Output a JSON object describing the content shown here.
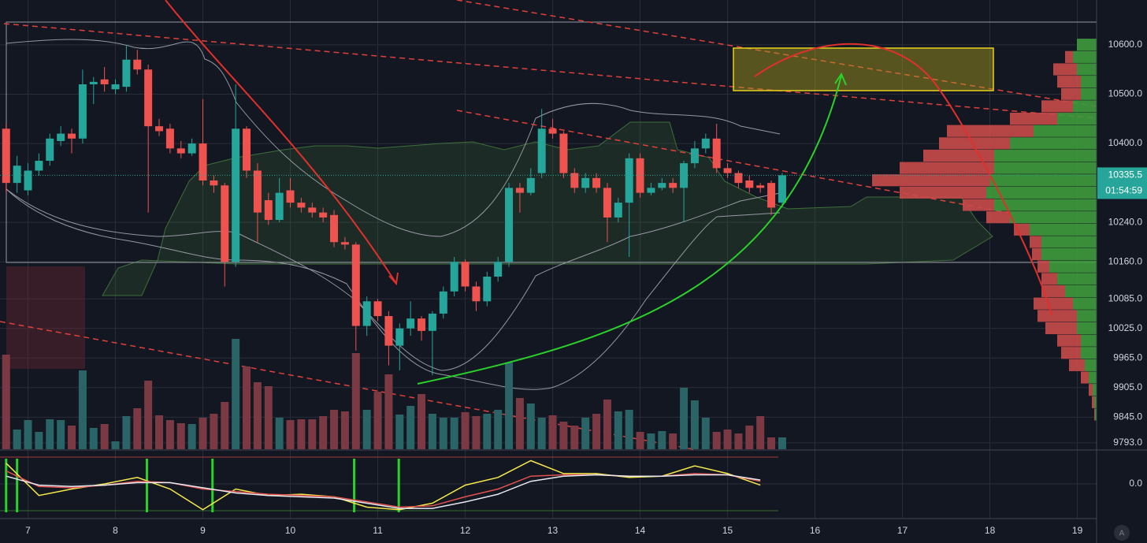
{
  "chart_data": {
    "type": "candlestick",
    "x": [
      6.75,
      6.875,
      7,
      7.125,
      7.25,
      7.375,
      7.5,
      7.625,
      7.75,
      7.875,
      8,
      8.125,
      8.25,
      8.375,
      8.5,
      8.625,
      8.75,
      8.875,
      9,
      9.125,
      9.25,
      9.375,
      9.5,
      9.625,
      9.75,
      9.875,
      10,
      10.125,
      10.25,
      10.375,
      10.5,
      10.625,
      10.75,
      10.875,
      11,
      11.125,
      11.25,
      11.375,
      11.5,
      11.625,
      11.75,
      11.875,
      12,
      12.125,
      12.25,
      12.375,
      12.5,
      12.625,
      12.75,
      12.875,
      13,
      13.125,
      13.25,
      13.375,
      13.5,
      13.625,
      13.75,
      13.875,
      14,
      14.125,
      14.25,
      14.375,
      14.5,
      14.625,
      14.75,
      14.875,
      15,
      15.125,
      15.25,
      15.375,
      15.5,
      15.625
    ],
    "open": [
      10430,
      10320,
      10305,
      10345,
      10365,
      10405,
      10420,
      10410,
      10520,
      10530,
      10510,
      10515,
      10570,
      10550,
      10435,
      10430,
      10390,
      10380,
      10400,
      10325,
      10315,
      10160,
      10430,
      10345,
      10285,
      10245,
      10305,
      10280,
      10270,
      10260,
      10255,
      10200,
      10195,
      10030,
      10080,
      10050,
      9990,
      10025,
      10045,
      10020,
      10055,
      10100,
      10160,
      10110,
      10080,
      10130,
      10160,
      10310,
      10300,
      10340,
      10430,
      10420,
      10340,
      10310,
      10330,
      10310,
      10250,
      10280,
      10370,
      10300,
      10310,
      10320,
      10310,
      10360,
      10390,
      10410,
      10350,
      10340,
      10325,
      10315,
      10320,
      10280
    ],
    "high": [
      10440,
      10375,
      10360,
      10380,
      10420,
      10435,
      10430,
      10550,
      10535,
      10555,
      10530,
      10600,
      10590,
      10560,
      10450,
      10440,
      10405,
      10410,
      10490,
      10335,
      10320,
      10520,
      10435,
      10360,
      10300,
      10330,
      10330,
      10290,
      10280,
      10270,
      10265,
      10210,
      10200,
      10090,
      10085,
      10060,
      10035,
      10080,
      10050,
      10060,
      10110,
      10170,
      10165,
      10120,
      10140,
      10170,
      10320,
      10320,
      10350,
      10470,
      10450,
      10425,
      10350,
      10340,
      10340,
      10320,
      10290,
      10380,
      10380,
      10320,
      10330,
      10330,
      10365,
      10405,
      10420,
      10440,
      10360,
      10345,
      10335,
      10320,
      10325,
      10340
    ],
    "low": [
      10300,
      10300,
      10295,
      10335,
      10355,
      10395,
      10380,
      10400,
      10480,
      10505,
      10500,
      10505,
      10540,
      10260,
      10415,
      10380,
      10370,
      10375,
      10315,
      10300,
      10110,
      10150,
      10330,
      10200,
      10235,
      10240,
      10270,
      10260,
      10250,
      10240,
      10190,
      10185,
      9980,
      10010,
      10040,
      9950,
      9940,
      10010,
      10000,
      9930,
      10045,
      10090,
      10100,
      10060,
      10070,
      10120,
      10150,
      10260,
      10295,
      10330,
      10410,
      10330,
      10300,
      10300,
      10300,
      10200,
      10240,
      10170,
      10290,
      10295,
      10305,
      10300,
      10240,
      10350,
      10380,
      10340,
      10330,
      10310,
      10300,
      10300,
      10255,
      10270
    ],
    "close": [
      10320,
      10355,
      10345,
      10365,
      10410,
      10420,
      10410,
      10520,
      10525,
      10520,
      10520,
      10570,
      10550,
      10435,
      10425,
      10390,
      10380,
      10400,
      10325,
      10315,
      10160,
      10430,
      10345,
      10260,
      10245,
      10300,
      10280,
      10270,
      10260,
      10250,
      10200,
      10195,
      10030,
      10080,
      10050,
      9990,
      10025,
      10045,
      10020,
      10055,
      10100,
      10160,
      10110,
      10080,
      10130,
      10160,
      10310,
      10300,
      10330,
      10430,
      10420,
      10340,
      10310,
      10330,
      10310,
      10250,
      10280,
      10370,
      10300,
      10310,
      10320,
      10310,
      10360,
      10390,
      10410,
      10350,
      10340,
      10320,
      10310,
      10310,
      10270,
      10335.5
    ],
    "up_color": "#26a69a",
    "down_color": "#ef5350",
    "xlim": [
      6.68,
      19.22
    ],
    "xticks": [
      7,
      8,
      9,
      10,
      11,
      12,
      13,
      14,
      15,
      16,
      17,
      18,
      19
    ],
    "ylim": [
      9780,
      10691
    ],
    "yticks": [
      {
        "value": 10600,
        "label": "10600.0"
      },
      {
        "value": 10500,
        "label": "10500.0"
      },
      {
        "value": 10400,
        "label": "10400.0"
      },
      {
        "value": 10240,
        "label": "10240.0"
      },
      {
        "value": 10160,
        "label": "10160.0"
      },
      {
        "value": 10085,
        "label": "10085.0"
      },
      {
        "value": 10025,
        "label": "10025.0"
      },
      {
        "value": 9965,
        "label": "9965.0"
      },
      {
        "value": 9905,
        "label": "9905.0"
      },
      {
        "value": 9845,
        "label": "9845.0"
      },
      {
        "value": 9793,
        "label": "9793.0"
      }
    ],
    "last_price": 10335.5,
    "countdown": "01:54:59",
    "volume": {
      "values": [
        120,
        25,
        37,
        22,
        38,
        37,
        30,
        100,
        27,
        32,
        10,
        42,
        52,
        87,
        43,
        37,
        33,
        32,
        40,
        45,
        60,
        140,
        105,
        85,
        80,
        40,
        37,
        38,
        38,
        42,
        50,
        48,
        122,
        50,
        73,
        95,
        44,
        55,
        70,
        45,
        40,
        40,
        47,
        42,
        45,
        50,
        110,
        65,
        58,
        40,
        43,
        35,
        30,
        40,
        45,
        63,
        48,
        50,
        22,
        20,
        23,
        20,
        78,
        62,
        40,
        22,
        25,
        20,
        30,
        42,
        15,
        15
      ],
      "ylim": [
        0,
        570
      ],
      "up_color": "#2a6466",
      "down_color": "#7b3a43"
    },
    "oscillator": {
      "x": [
        6.75,
        7.125,
        7.5,
        7.875,
        8.25,
        8.625,
        9,
        9.375,
        9.75,
        10.125,
        10.5,
        10.875,
        11.25,
        11.625,
        12,
        12.375,
        12.75,
        13.125,
        13.5,
        13.875,
        14.25,
        14.625,
        15,
        15.375
      ],
      "ylim": [
        -1.1,
        1.1
      ],
      "yticks": [
        {
          "value": 0,
          "label": "0.0"
        }
      ],
      "series": [
        {
          "color": "#f5e94c",
          "values": [
            0.8,
            -0.45,
            -0.2,
            0,
            0.25,
            -0.2,
            -1,
            -0.2,
            -0.45,
            -0.4,
            -0.5,
            -0.9,
            -1,
            -0.75,
            -0.05,
            0.25,
            0.9,
            0.4,
            0.4,
            0.25,
            0.3,
            0.7,
            0.4,
            -0.05
          ]
        },
        {
          "color": "#e0514f",
          "values": [
            0.5,
            -0.1,
            -0.15,
            -0.05,
            0.1,
            0.05,
            -0.2,
            -0.3,
            -0.4,
            -0.45,
            -0.5,
            -0.7,
            -0.9,
            -0.85,
            -0.5,
            -0.2,
            0.3,
            0.35,
            0.35,
            0.3,
            0.3,
            0.4,
            0.35,
            0.1
          ]
        },
        {
          "color": "#e8e8f0",
          "values": [
            0.3,
            -0.05,
            -0.1,
            -0.05,
            0.05,
            0.05,
            -0.15,
            -0.35,
            -0.45,
            -0.5,
            -0.55,
            -0.75,
            -0.95,
            -0.95,
            -0.7,
            -0.4,
            0.1,
            0.3,
            0.35,
            0.3,
            0.3,
            0.35,
            0.35,
            0.15
          ]
        }
      ],
      "signals": [
        6.75,
        6.875,
        8.36,
        9.11,
        10.73,
        11.24
      ],
      "signal_color": "#2bd12b"
    },
    "volume_profile": {
      "prices": [
        10600,
        10575,
        10550,
        10525,
        10500,
        10475,
        10450,
        10425,
        10400,
        10375,
        10350,
        10325,
        10300,
        10275,
        10250,
        10225,
        10200,
        10175,
        10150,
        10125,
        10100,
        10075,
        10050,
        10025,
        10000,
        9975,
        9950,
        9925,
        9900,
        9875,
        9850
      ],
      "buy": [
        25,
        30,
        25,
        20,
        20,
        30,
        50,
        80,
        110,
        130,
        130,
        135,
        140,
        130,
        110,
        85,
        70,
        70,
        60,
        50,
        40,
        30,
        25,
        25,
        20,
        20,
        15,
        10,
        5,
        3,
        2
      ],
      "sell": [
        0,
        10,
        30,
        30,
        25,
        40,
        60,
        110,
        90,
        90,
        120,
        150,
        110,
        40,
        30,
        20,
        15,
        12,
        15,
        20,
        30,
        50,
        50,
        40,
        30,
        25,
        20,
        10,
        5,
        3,
        1
      ],
      "xlim": [
        0,
        300
      ],
      "buy_color": "#3f9b3c",
      "sell_color": "#c94a4a"
    }
  }
}
